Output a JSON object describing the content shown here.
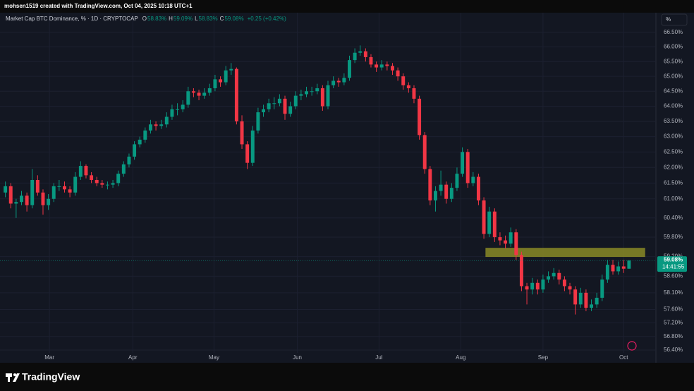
{
  "header": {
    "text": "mohsen1519 created with TradingView.com, Oct 04, 2025 10:18 UTC+1"
  },
  "footer": {
    "logo": "TradingView"
  },
  "chart_data": {
    "type": "candlestick",
    "title": "Market Cap BTC Dominance, % · 1D · CRYPTOCAP",
    "ohlc_legend": [
      {
        "label": "O",
        "value": "58.83%"
      },
      {
        "label": "H",
        "value": "59.09%"
      },
      {
        "label": "L",
        "value": "58.83%"
      },
      {
        "label": "C",
        "value": "59.08%"
      }
    ],
    "change": "+0.25 (+0.42%)",
    "scale_button": "%",
    "up_color": "#089981",
    "down_color": "#f23645",
    "log_scale": true,
    "grid": true,
    "xlim": [
      -1,
      121
    ],
    "xticks": [
      {
        "value": 8.2,
        "label": "Mar"
      },
      {
        "value": 23.7,
        "label": "Apr"
      },
      {
        "value": 38.8,
        "label": "May"
      },
      {
        "value": 54.3,
        "label": "Jun"
      },
      {
        "value": 69.5,
        "label": "Jul"
      },
      {
        "value": 84.7,
        "label": "Aug"
      },
      {
        "value": 100,
        "label": "Sep"
      },
      {
        "value": 115,
        "label": "Oct"
      }
    ],
    "ylim": [
      56.03,
      67.18
    ],
    "yticks": [
      {
        "value": 66.5,
        "label": "66.50%"
      },
      {
        "value": 66,
        "label": "66.00%"
      },
      {
        "value": 65.5,
        "label": "65.50%"
      },
      {
        "value": 65,
        "label": "65.00%"
      },
      {
        "value": 64.5,
        "label": "64.50%"
      },
      {
        "value": 64,
        "label": "64.00%"
      },
      {
        "value": 63.5,
        "label": "63.50%"
      },
      {
        "value": 63,
        "label": "63.00%"
      },
      {
        "value": 62.5,
        "label": "62.50%"
      },
      {
        "value": 62,
        "label": "62.00%"
      },
      {
        "value": 61.5,
        "label": "61.50%"
      },
      {
        "value": 61,
        "label": "61.00%"
      },
      {
        "value": 60.4,
        "label": "60.40%"
      },
      {
        "value": 59.8,
        "label": "59.80%"
      },
      {
        "value": 59.2,
        "label": "59.20%"
      },
      {
        "value": 58.6,
        "label": "58.60%"
      },
      {
        "value": 58.1,
        "label": "58.10%"
      },
      {
        "value": 57.6,
        "label": "57.60%"
      },
      {
        "value": 57.2,
        "label": "57.20%"
      },
      {
        "value": 56.8,
        "label": "56.80%"
      },
      {
        "value": 56.4,
        "label": "56.40%"
      }
    ],
    "last_price": 59.08,
    "last_price_label": "59.08%",
    "countdown": "14:41:55",
    "zone": {
      "xlim": [
        89.3,
        119
      ],
      "ylim": [
        59.19,
        59.47
      ],
      "color": "#8a8a26"
    },
    "candles": [
      [
        61.2,
        61.55,
        61.05,
        61.4
      ],
      [
        61.4,
        61.5,
        60.7,
        60.85
      ],
      [
        60.85,
        61.0,
        60.4,
        60.9
      ],
      [
        60.9,
        61.25,
        60.8,
        61.1
      ],
      [
        61.1,
        61.2,
        60.6,
        60.8
      ],
      [
        60.8,
        61.95,
        60.7,
        61.6
      ],
      [
        61.6,
        61.75,
        61.1,
        61.2
      ],
      [
        61.2,
        61.3,
        60.5,
        60.8
      ],
      [
        60.8,
        61.15,
        60.65,
        61.0
      ],
      [
        61.0,
        61.5,
        60.9,
        61.4
      ],
      [
        61.4,
        61.6,
        61.25,
        61.4
      ],
      [
        61.4,
        61.55,
        61.2,
        61.3
      ],
      [
        61.3,
        61.4,
        61.05,
        61.2
      ],
      [
        61.2,
        61.85,
        61.1,
        61.7
      ],
      [
        61.7,
        62.2,
        61.6,
        62.05
      ],
      [
        62.05,
        62.1,
        61.65,
        61.75
      ],
      [
        61.75,
        61.85,
        61.5,
        61.6
      ],
      [
        61.6,
        61.7,
        61.4,
        61.5
      ],
      [
        61.5,
        61.6,
        61.35,
        61.45
      ],
      [
        61.45,
        61.55,
        61.3,
        61.45
      ],
      [
        61.45,
        61.6,
        61.35,
        61.5
      ],
      [
        61.5,
        61.9,
        61.4,
        61.8
      ],
      [
        61.8,
        62.2,
        61.7,
        62.1
      ],
      [
        62.1,
        62.45,
        62.0,
        62.35
      ],
      [
        62.35,
        62.85,
        62.25,
        62.75
      ],
      [
        62.75,
        63.0,
        62.65,
        62.9
      ],
      [
        62.9,
        63.3,
        62.8,
        63.2
      ],
      [
        63.2,
        63.55,
        63.1,
        63.4
      ],
      [
        63.4,
        63.5,
        63.2,
        63.35
      ],
      [
        63.35,
        63.55,
        63.25,
        63.4
      ],
      [
        63.4,
        63.8,
        63.3,
        63.65
      ],
      [
        63.65,
        64.05,
        63.55,
        63.9
      ],
      [
        63.9,
        64.1,
        63.7,
        63.9
      ],
      [
        63.9,
        64.2,
        63.8,
        64.05
      ],
      [
        64.05,
        64.65,
        63.95,
        64.5
      ],
      [
        64.5,
        64.6,
        64.3,
        64.45
      ],
      [
        64.45,
        64.55,
        64.2,
        64.35
      ],
      [
        64.35,
        64.6,
        64.25,
        64.45
      ],
      [
        64.45,
        64.75,
        64.35,
        64.6
      ],
      [
        64.6,
        65.05,
        64.5,
        64.9
      ],
      [
        64.9,
        65.0,
        64.65,
        64.8
      ],
      [
        64.8,
        65.35,
        64.7,
        65.2
      ],
      [
        65.2,
        65.45,
        65.05,
        65.25
      ],
      [
        65.25,
        65.3,
        63.4,
        63.5
      ],
      [
        63.5,
        63.7,
        62.6,
        62.75
      ],
      [
        62.75,
        62.85,
        61.95,
        62.15
      ],
      [
        62.15,
        63.35,
        62.05,
        63.2
      ],
      [
        63.2,
        63.95,
        63.1,
        63.8
      ],
      [
        63.8,
        64.05,
        63.65,
        63.9
      ],
      [
        63.9,
        64.25,
        63.8,
        64.1
      ],
      [
        64.1,
        64.3,
        63.9,
        64.1
      ],
      [
        64.1,
        64.4,
        64.0,
        64.25
      ],
      [
        64.25,
        64.35,
        63.55,
        63.75
      ],
      [
        63.75,
        64.15,
        63.65,
        64.0
      ],
      [
        64.0,
        64.5,
        63.9,
        64.35
      ],
      [
        64.35,
        64.55,
        64.2,
        64.4
      ],
      [
        64.4,
        64.65,
        64.3,
        64.5
      ],
      [
        64.5,
        64.65,
        64.35,
        64.5
      ],
      [
        64.5,
        64.75,
        64.4,
        64.6
      ],
      [
        64.6,
        64.7,
        63.85,
        64.0
      ],
      [
        64.0,
        64.85,
        63.9,
        64.7
      ],
      [
        64.7,
        65.0,
        64.6,
        64.85
      ],
      [
        64.85,
        64.95,
        64.65,
        64.8
      ],
      [
        64.8,
        65.1,
        64.7,
        64.95
      ],
      [
        64.95,
        65.7,
        64.85,
        65.55
      ],
      [
        65.55,
        65.95,
        65.45,
        65.8
      ],
      [
        65.8,
        66.05,
        65.7,
        65.85
      ],
      [
        65.85,
        65.95,
        65.5,
        65.65
      ],
      [
        65.65,
        65.75,
        65.3,
        65.4
      ],
      [
        65.4,
        65.5,
        65.15,
        65.3
      ],
      [
        65.3,
        65.55,
        65.2,
        65.4
      ],
      [
        65.4,
        65.5,
        65.2,
        65.35
      ],
      [
        65.35,
        65.45,
        65.05,
        65.2
      ],
      [
        65.2,
        65.3,
        64.85,
        65.0
      ],
      [
        65.0,
        65.1,
        64.55,
        64.7
      ],
      [
        64.7,
        64.8,
        64.45,
        64.6
      ],
      [
        64.6,
        64.7,
        64.1,
        64.25
      ],
      [
        64.25,
        64.35,
        62.9,
        63.05
      ],
      [
        63.05,
        63.15,
        61.8,
        61.95
      ],
      [
        61.95,
        62.05,
        60.8,
        60.95
      ],
      [
        60.95,
        61.4,
        60.6,
        61.25
      ],
      [
        61.25,
        61.9,
        61.1,
        61.45
      ],
      [
        61.45,
        61.55,
        60.85,
        61.0
      ],
      [
        61.0,
        61.5,
        60.9,
        61.35
      ],
      [
        61.35,
        62.0,
        61.25,
        61.8
      ],
      [
        61.8,
        62.65,
        61.7,
        62.5
      ],
      [
        62.5,
        62.6,
        61.35,
        61.5
      ],
      [
        61.5,
        61.85,
        61.4,
        61.7
      ],
      [
        61.7,
        61.8,
        60.8,
        60.95
      ],
      [
        60.95,
        61.05,
        59.75,
        59.9
      ],
      [
        59.9,
        60.75,
        59.8,
        60.6
      ],
      [
        60.6,
        60.7,
        59.65,
        59.8
      ],
      [
        59.8,
        59.95,
        59.55,
        59.7
      ],
      [
        59.7,
        59.85,
        59.45,
        59.6
      ],
      [
        59.6,
        60.1,
        59.5,
        59.95
      ],
      [
        59.95,
        60.05,
        59.1,
        59.25
      ],
      [
        59.25,
        59.35,
        58.15,
        58.3
      ],
      [
        58.3,
        58.4,
        57.75,
        58.2
      ],
      [
        58.2,
        58.55,
        58.05,
        58.4
      ],
      [
        58.4,
        58.5,
        58.05,
        58.2
      ],
      [
        58.2,
        58.65,
        58.1,
        58.5
      ],
      [
        58.5,
        58.75,
        58.4,
        58.6
      ],
      [
        58.6,
        58.85,
        58.5,
        58.7
      ],
      [
        58.7,
        58.8,
        58.35,
        58.5
      ],
      [
        58.5,
        58.6,
        58.15,
        58.3
      ],
      [
        58.3,
        58.4,
        58.05,
        58.2
      ],
      [
        58.2,
        58.3,
        57.45,
        57.75
      ],
      [
        57.75,
        58.25,
        57.65,
        58.1
      ],
      [
        58.1,
        58.2,
        57.55,
        57.65
      ],
      [
        57.65,
        57.9,
        57.55,
        57.75
      ],
      [
        57.75,
        58.1,
        57.65,
        57.95
      ],
      [
        57.95,
        58.65,
        57.85,
        58.5
      ],
      [
        58.5,
        59.1,
        58.4,
        58.95
      ],
      [
        58.95,
        59.1,
        58.65,
        58.75
      ],
      [
        58.75,
        59.05,
        58.65,
        58.9
      ],
      [
        58.9,
        59.1,
        58.7,
        58.83
      ],
      [
        58.83,
        59.09,
        58.83,
        59.08
      ]
    ]
  }
}
